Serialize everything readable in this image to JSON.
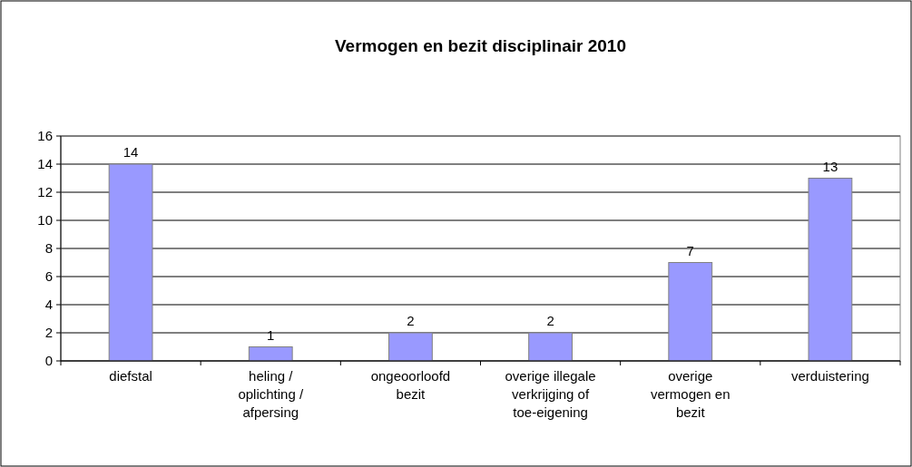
{
  "chart_data": {
    "type": "bar",
    "title": "Vermogen en bezit disciplinair 2010",
    "categories": [
      "diefstal",
      "heling / oplichting / afpersing",
      "ongeoorloofd bezit",
      "overige illegale verkrijging of toe-eigening",
      "overige vermogen en bezit",
      "verduistering"
    ],
    "values": [
      14,
      1,
      2,
      2,
      7,
      13
    ],
    "color": "#9999ff",
    "ylim": [
      0,
      16
    ],
    "yticks": [
      0,
      2,
      4,
      6,
      8,
      10,
      12,
      14,
      16
    ],
    "grid": "y",
    "data_labels": true
  }
}
